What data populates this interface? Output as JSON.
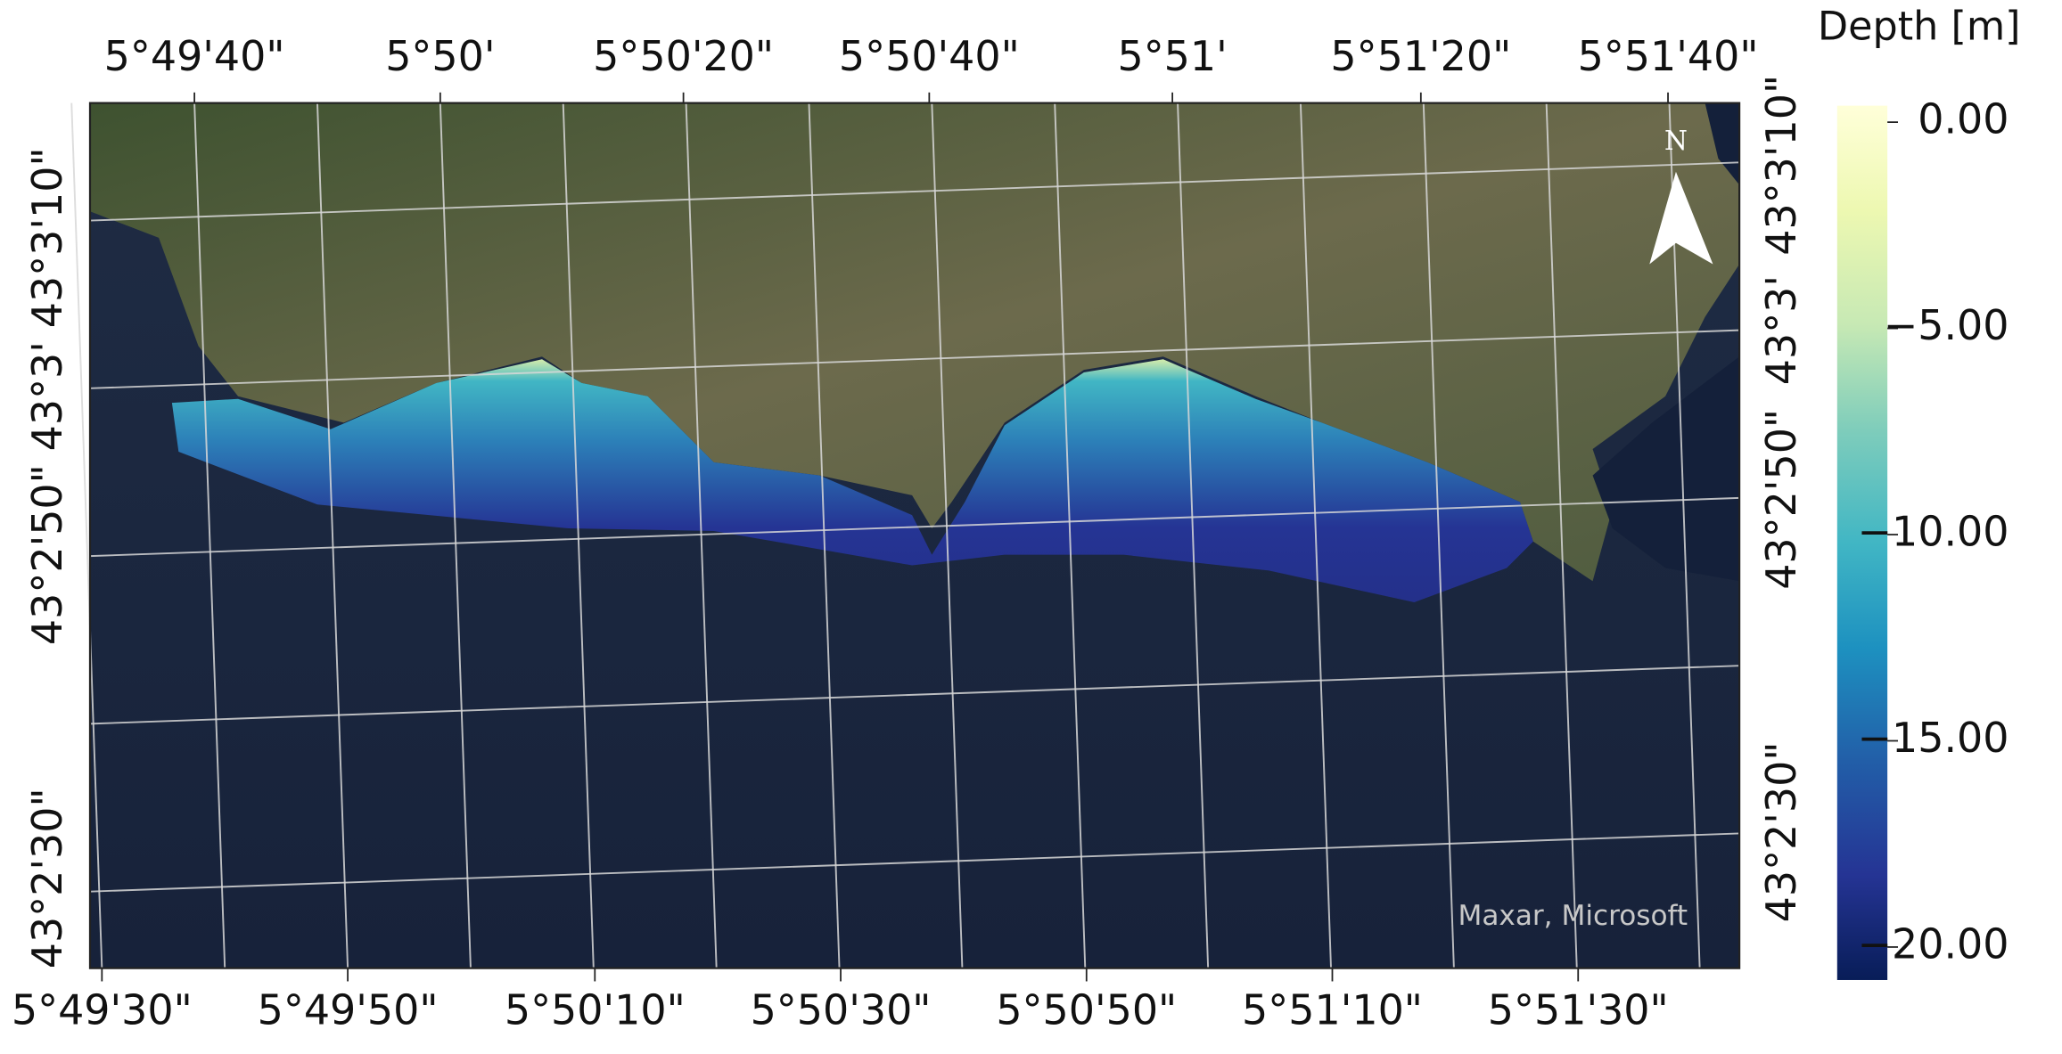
{
  "map": {
    "top_labels": [
      "5°49'40\"",
      "5°50'",
      "5°50'20\"",
      "5°50'40\"",
      "5°51'",
      "5°51'20\"",
      "5°51'40\""
    ],
    "bottom_labels": [
      "5°49'30\"",
      "5°49'50\"",
      "5°50'10\"",
      "5°50'30\"",
      "5°50'50\"",
      "5°51'10\"",
      "5°51'30\""
    ],
    "left_labels": [
      "43°3'10\"",
      "43°3'",
      "43°2'50\"",
      "43°2'30\""
    ],
    "right_labels": [
      "43°3'10\"",
      "43°3'",
      "43°2'50\"",
      "43°2'30\""
    ],
    "north_label": "N",
    "attribution": "Maxar, Microsoft",
    "colorbar": {
      "title": "Depth [m]",
      "lim": [
        -20.8,
        0.4
      ],
      "ticks": [
        {
          "value": 0,
          "label": "0.00"
        },
        {
          "value": -5,
          "label": "−5.00"
        },
        {
          "value": -10,
          "label": "−10.00"
        },
        {
          "value": -15,
          "label": "−15.00"
        },
        {
          "value": -20,
          "label": "−20.00"
        }
      ]
    }
  }
}
